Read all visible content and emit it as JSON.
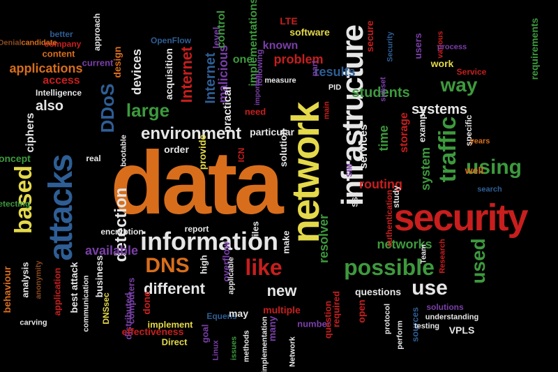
{
  "colors": {
    "background": "#000000",
    "orange": "#d86e1c",
    "white": "#e6e6e6",
    "yellow": "#e4d94a",
    "red": "#c81e1e",
    "green": "#3d9a3d",
    "blue": "#2e5e95",
    "purple": "#7a3fa8",
    "brown": "#8a4a1e"
  },
  "words": [
    {
      "text": "data",
      "size": 128,
      "color": "#d86e1c",
      "rot": 0
    },
    {
      "text": "network",
      "size": 56,
      "color": "#e4d94a",
      "rot": -90
    },
    {
      "text": "security",
      "size": 54,
      "color": "#c81e1e",
      "rot": 0
    },
    {
      "text": "infrastructure",
      "size": 44,
      "color": "#e6e6e6",
      "rot": -90
    },
    {
      "text": "attacks",
      "size": 48,
      "color": "#2e5e95",
      "rot": -90
    },
    {
      "text": "information",
      "size": 36,
      "color": "#e6e6e6",
      "rot": 0
    },
    {
      "text": "based",
      "size": 34,
      "color": "#e4d94a",
      "rot": -90
    },
    {
      "text": "possible",
      "size": 32,
      "color": "#3d9a3d",
      "rot": 0
    },
    {
      "text": "traffic",
      "size": 34,
      "color": "#3d9a3d",
      "rot": -90
    },
    {
      "text": "using",
      "size": 30,
      "color": "#3d9a3d",
      "rot": 0
    },
    {
      "text": "like",
      "size": 32,
      "color": "#c81e1e",
      "rot": 0
    },
    {
      "text": "DNS",
      "size": 30,
      "color": "#d86e1c",
      "rot": 0
    },
    {
      "text": "use",
      "size": 30,
      "color": "#e6e6e6",
      "rot": 0
    },
    {
      "text": "used",
      "size": 28,
      "color": "#3d9a3d",
      "rot": -90
    },
    {
      "text": "environment",
      "size": 24,
      "color": "#e6e6e6",
      "rot": 0
    },
    {
      "text": "large",
      "size": 26,
      "color": "#3d9a3d",
      "rot": 0
    },
    {
      "text": "way",
      "size": 28,
      "color": "#3d9a3d",
      "rot": 0
    },
    {
      "text": "DDoS",
      "size": 26,
      "color": "#2e5e95",
      "rot": -90
    },
    {
      "text": "detection",
      "size": 24,
      "color": "#e6e6e6",
      "rot": -90
    },
    {
      "text": "Internet",
      "size": 22,
      "color": "#c81e1e",
      "rot": -90
    },
    {
      "text": "Internet",
      "size": 20,
      "color": "#2e5e95",
      "rot": -90
    },
    {
      "text": "different",
      "size": 22,
      "color": "#e6e6e6",
      "rot": 0
    },
    {
      "text": "new",
      "size": 22,
      "color": "#e6e6e6",
      "rot": 0
    },
    {
      "text": "systems",
      "size": 20,
      "color": "#e6e6e6",
      "rot": 0
    },
    {
      "text": "students",
      "size": 20,
      "color": "#3d9a3d",
      "rot": 0
    },
    {
      "text": "also",
      "size": 20,
      "color": "#e6e6e6",
      "rot": 0
    },
    {
      "text": "applications",
      "size": 18,
      "color": "#d86e1c",
      "rot": 0
    },
    {
      "text": "available",
      "size": 18,
      "color": "#7a3fa8",
      "rot": 0
    },
    {
      "text": "networks",
      "size": 18,
      "color": "#3d9a3d",
      "rot": 0
    },
    {
      "text": "routing",
      "size": 18,
      "color": "#c81e1e",
      "rot": 0
    },
    {
      "text": "problem",
      "size": 18,
      "color": "#c81e1e",
      "rot": 0
    },
    {
      "text": "results",
      "size": 18,
      "color": "#2e5e95",
      "rot": 0
    },
    {
      "text": "devices",
      "size": 18,
      "color": "#e6e6e6",
      "rot": -90
    },
    {
      "text": "ciphers",
      "size": 16,
      "color": "#e6e6e6",
      "rot": -90
    },
    {
      "text": "system",
      "size": 18,
      "color": "#3d9a3d",
      "rot": -90
    },
    {
      "text": "storage",
      "size": 16,
      "color": "#c81e1e",
      "rot": -90
    },
    {
      "text": "resolver",
      "size": 18,
      "color": "#3d9a3d",
      "rot": -90
    },
    {
      "text": "access",
      "size": 16,
      "color": "#c81e1e",
      "rot": 0
    },
    {
      "text": "malicious",
      "size": 18,
      "color": "#7a3fa8",
      "rot": -90
    },
    {
      "text": "implementations",
      "size": 16,
      "color": "#3d9a3d",
      "rot": -90
    },
    {
      "text": "practical",
      "size": 16,
      "color": "#e6e6e6",
      "rot": -90
    },
    {
      "text": "particular",
      "size": 14,
      "color": "#e6e6e6",
      "rot": 0
    },
    {
      "text": "known",
      "size": 16,
      "color": "#7a3fa8",
      "rot": 0
    },
    {
      "text": "level",
      "size": 14,
      "color": "#7a3fa8",
      "rot": -90
    },
    {
      "text": "one",
      "size": 16,
      "color": "#3d9a3d",
      "rot": 0
    },
    {
      "text": "LTE",
      "size": 14,
      "color": "#c81e1e",
      "rot": 0
    },
    {
      "text": "control",
      "size": 16,
      "color": "#3d9a3d",
      "rot": -90
    },
    {
      "text": "design",
      "size": 14,
      "color": "#d86e1c",
      "rot": -90
    },
    {
      "text": "current",
      "size": 13,
      "color": "#7a3fa8",
      "rot": 0
    },
    {
      "text": "content",
      "size": 13,
      "color": "#d86e1c",
      "rot": 0
    },
    {
      "text": "company",
      "size": 12,
      "color": "#c81e1e",
      "rot": 0
    },
    {
      "text": "better",
      "size": 12,
      "color": "#2e5e95",
      "rot": 0
    },
    {
      "text": "approach",
      "size": 12,
      "color": "#e6e6e6",
      "rot": -90
    },
    {
      "text": "Denial",
      "size": 11,
      "color": "#8a4a1e",
      "rot": 0
    },
    {
      "text": "candidate",
      "size": 11,
      "color": "#d86e1c",
      "rot": 0
    },
    {
      "text": "Intelligence",
      "size": 12,
      "color": "#e6e6e6",
      "rot": 0
    },
    {
      "text": "OpenFlow",
      "size": 12,
      "color": "#2e5e95",
      "rot": 0
    },
    {
      "text": "software",
      "size": 14,
      "color": "#e4d94a",
      "rot": 0
    },
    {
      "text": "work",
      "size": 14,
      "color": "#e4d94a",
      "rot": 0
    },
    {
      "text": "Service",
      "size": 12,
      "color": "#c81e1e",
      "rot": 0
    },
    {
      "text": "users",
      "size": 14,
      "color": "#7a3fa8",
      "rot": -90
    },
    {
      "text": "requirements",
      "size": 14,
      "color": "#3d9a3d",
      "rot": -90
    },
    {
      "text": "secure",
      "size": 14,
      "color": "#c81e1e",
      "rot": -90
    },
    {
      "text": "Security",
      "size": 11,
      "color": "#2e5e95",
      "rot": -90
    },
    {
      "text": "subset",
      "size": 11,
      "color": "#7a3fa8",
      "rot": -90
    },
    {
      "text": "various",
      "size": 11,
      "color": "#c81e1e",
      "rot": -90
    },
    {
      "text": "process",
      "size": 11,
      "color": "#7a3fa8",
      "rot": 0
    },
    {
      "text": "part",
      "size": 12,
      "color": "#7a3fa8",
      "rot": -90
    },
    {
      "text": "measure",
      "size": 11,
      "color": "#e6e6e6",
      "rot": 0
    },
    {
      "text": "PID",
      "size": 11,
      "color": "#e6e6e6",
      "rot": 0
    },
    {
      "text": "need",
      "size": 13,
      "color": "#c81e1e",
      "rot": 0
    },
    {
      "text": "main",
      "size": 11,
      "color": "#c81e1e",
      "rot": -90
    },
    {
      "text": "important",
      "size": 10,
      "color": "#7a3fa8",
      "rot": -90
    },
    {
      "text": "following",
      "size": 12,
      "color": "#7a3fa8",
      "rot": -90
    },
    {
      "text": "acquisition",
      "size": 14,
      "color": "#e6e6e6",
      "rot": -90
    },
    {
      "text": "concept",
      "size": 14,
      "color": "#3d9a3d",
      "rot": 0
    },
    {
      "text": "order",
      "size": 14,
      "color": "#e6e6e6",
      "rot": 0
    },
    {
      "text": "ICN",
      "size": 12,
      "color": "#c81e1e",
      "rot": -90
    },
    {
      "text": "provide",
      "size": 14,
      "color": "#e4d94a",
      "rot": -90
    },
    {
      "text": "solution",
      "size": 14,
      "color": "#e6e6e6",
      "rot": -90
    },
    {
      "text": "services",
      "size": 16,
      "color": "#e6e6e6",
      "rot": -90
    },
    {
      "text": "time",
      "size": 18,
      "color": "#3d9a3d",
      "rot": -90
    },
    {
      "text": "specific",
      "size": 12,
      "color": "#e6e6e6",
      "rot": -90
    },
    {
      "text": "years",
      "size": 11,
      "color": "#d86e1c",
      "rot": 0
    },
    {
      "text": "example",
      "size": 13,
      "color": "#e6e6e6",
      "rot": -90
    },
    {
      "text": "bootable",
      "size": 11,
      "color": "#e6e6e6",
      "rot": -90
    },
    {
      "text": "real",
      "size": 12,
      "color": "#e6e6e6",
      "rot": 0
    },
    {
      "text": "SIM",
      "size": 11,
      "color": "#7a3fa8",
      "rot": -90
    },
    {
      "text": "well",
      "size": 14,
      "color": "#d86e1c",
      "rot": 0
    },
    {
      "text": "search",
      "size": 11,
      "color": "#2e5e95",
      "rot": 0
    },
    {
      "text": "study",
      "size": 12,
      "color": "#e6e6e6",
      "rot": -90
    },
    {
      "text": "SSL",
      "size": 11,
      "color": "#e6e6e6",
      "rot": -90
    },
    {
      "text": "authentication",
      "size": 12,
      "color": "#c81e1e",
      "rot": -90
    },
    {
      "text": "Detecting",
      "size": 12,
      "color": "#3d9a3d",
      "rot": 0
    },
    {
      "text": "encryption",
      "size": 12,
      "color": "#e6e6e6",
      "rot": 0
    },
    {
      "text": "report",
      "size": 12,
      "color": "#e6e6e6",
      "rot": 0
    },
    {
      "text": "files",
      "size": 13,
      "color": "#e6e6e6",
      "rot": -90
    },
    {
      "text": "make",
      "size": 13,
      "color": "#e6e6e6",
      "rot": -90
    },
    {
      "text": "high",
      "size": 13,
      "color": "#e6e6e6",
      "rot": -90
    },
    {
      "text": "overflow",
      "size": 14,
      "color": "#7a3fa8",
      "rot": -90
    },
    {
      "text": "applicable",
      "size": 11,
      "color": "#e6e6e6",
      "rot": -90
    },
    {
      "text": "behaviour",
      "size": 14,
      "color": "#d86e1c",
      "rot": -90
    },
    {
      "text": "analysis",
      "size": 13,
      "color": "#e6e6e6",
      "rot": -90
    },
    {
      "text": "anonymity",
      "size": 11,
      "color": "#8a4a1e",
      "rot": -90
    },
    {
      "text": "business",
      "size": 14,
      "color": "#e6e6e6",
      "rot": -90
    },
    {
      "text": "application",
      "size": 13,
      "color": "#c81e1e",
      "rot": -90
    },
    {
      "text": "best attack",
      "size": 14,
      "color": "#e6e6e6",
      "rot": -90
    },
    {
      "text": "communication",
      "size": 11,
      "color": "#e6e6e6",
      "rot": -90
    },
    {
      "text": "DNSsec",
      "size": 12,
      "color": "#e4d94a",
      "rot": -90
    },
    {
      "text": "computers",
      "size": 13,
      "color": "#7a3fa8",
      "rot": -90
    },
    {
      "text": "distributed",
      "size": 13,
      "color": "#7a3fa8",
      "rot": -90
    },
    {
      "text": "done",
      "size": 14,
      "color": "#c81e1e",
      "rot": -90
    },
    {
      "text": "effectiveness",
      "size": 14,
      "color": "#c81e1e",
      "rot": 0
    },
    {
      "text": "Equens",
      "size": 12,
      "color": "#2e5e95",
      "rot": 0
    },
    {
      "text": "implement",
      "size": 13,
      "color": "#e4d94a",
      "rot": 0
    },
    {
      "text": "Direct",
      "size": 13,
      "color": "#e4d94a",
      "rot": 0
    },
    {
      "text": "goal",
      "size": 13,
      "color": "#7a3fa8",
      "rot": -90
    },
    {
      "text": "carving",
      "size": 11,
      "color": "#e6e6e6",
      "rot": 0
    },
    {
      "text": "may",
      "size": 14,
      "color": "#e6e6e6",
      "rot": 0
    },
    {
      "text": "Linux",
      "size": 11,
      "color": "#7a3fa8",
      "rot": -90
    },
    {
      "text": "issues",
      "size": 11,
      "color": "#3d9a3d",
      "rot": -90
    },
    {
      "text": "methods",
      "size": 11,
      "color": "#e6e6e6",
      "rot": -90
    },
    {
      "text": "implementation",
      "size": 11,
      "color": "#e6e6e6",
      "rot": -90
    },
    {
      "text": "many",
      "size": 14,
      "color": "#7a3fa8",
      "rot": -90
    },
    {
      "text": "Network",
      "size": 11,
      "color": "#e6e6e6",
      "rot": -90
    },
    {
      "text": "multiple",
      "size": 14,
      "color": "#c81e1e",
      "rot": 0
    },
    {
      "text": "number",
      "size": 13,
      "color": "#7a3fa8",
      "rot": 0
    },
    {
      "text": "question",
      "size": 13,
      "color": "#c81e1e",
      "rot": -90
    },
    {
      "text": "questions",
      "size": 14,
      "color": "#e6e6e6",
      "rot": 0
    },
    {
      "text": "required",
      "size": 13,
      "color": "#c81e1e",
      "rot": -90
    },
    {
      "text": "open",
      "size": 14,
      "color": "#c81e1e",
      "rot": -90
    },
    {
      "text": "perform",
      "size": 11,
      "color": "#e6e6e6",
      "rot": -90
    },
    {
      "text": "sources",
      "size": 13,
      "color": "#2e5e95",
      "rot": -90
    },
    {
      "text": "protocol",
      "size": 11,
      "color": "#e6e6e6",
      "rot": -90
    },
    {
      "text": "solutions",
      "size": 12,
      "color": "#7a3fa8",
      "rot": 0
    },
    {
      "text": "understanding",
      "size": 11,
      "color": "#e6e6e6",
      "rot": 0
    },
    {
      "text": "testing",
      "size": 11,
      "color": "#e6e6e6",
      "rot": 0
    },
    {
      "text": "VPLS",
      "size": 14,
      "color": "#e6e6e6",
      "rot": 0
    },
    {
      "text": "Team",
      "size": 11,
      "color": "#e6e6e6",
      "rot": -90
    },
    {
      "text": "Research",
      "size": 11,
      "color": "#c81e1e",
      "rot": -90
    }
  ]
}
